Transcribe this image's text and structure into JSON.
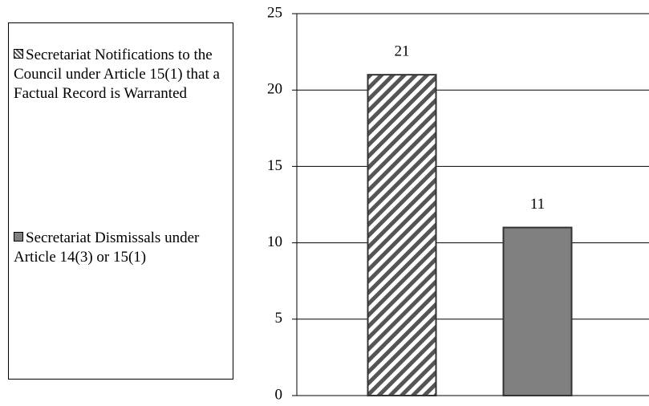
{
  "chart_data": {
    "type": "bar",
    "categories": [
      null
    ],
    "series": [
      {
        "name": "Secretariat Notifications to the Council under Article 15(1) that a Factual Record is Warranted",
        "color": "#555555",
        "hatch": true,
        "values": [
          21
        ]
      },
      {
        "name": "Secretariat Dismissals under Article 14(3) or 15(1)",
        "color": "#808080",
        "hatch": false,
        "values": [
          11
        ]
      }
    ],
    "ylim": [
      0,
      25
    ],
    "yticks": [
      0,
      5,
      10,
      15,
      20,
      25
    ],
    "grid": true,
    "legend": "left",
    "data_labels": true
  }
}
